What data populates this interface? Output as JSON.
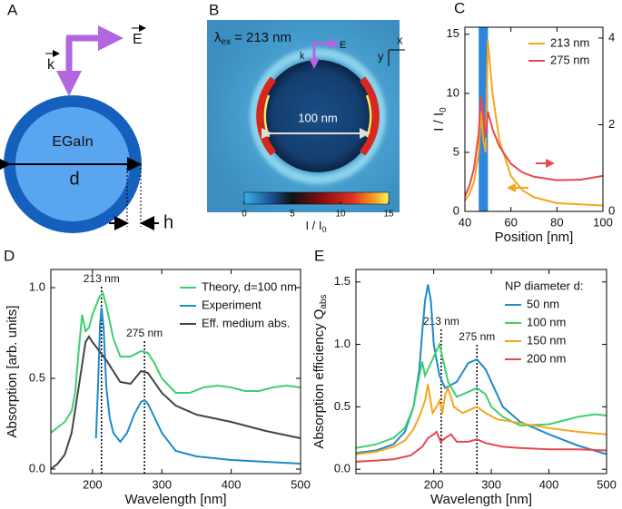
{
  "diagram": {
    "panel_label": "A",
    "wave_vector": "k",
    "field": "E",
    "core": "EGaIn",
    "diameter": "d",
    "shell": "h"
  },
  "field_map": {
    "panel_label": "B",
    "excitation": {
      "symbol": "λ",
      "subscript": "ex",
      "text": "= 213 nm"
    },
    "wave_vector": "k",
    "field": "E",
    "axis_x": "x",
    "axis_y": "y",
    "scale_bar": "100 nm",
    "colorbar": {
      "label": {
        "text": "I / I",
        "subscript": "0"
      },
      "lim": [
        0,
        15
      ],
      "ticks": [
        0,
        5,
        10,
        15
      ]
    }
  },
  "chart_data": [
    {
      "type": "line",
      "panel_label": "C",
      "xlabel": "Position [nm]",
      "ylabel": {
        "text": "I / I",
        "subscript": "0"
      },
      "xlim": [
        40,
        100
      ],
      "xticks": [
        40,
        60,
        80,
        100
      ],
      "ylim": [
        0,
        15.6
      ],
      "yticks": [
        0,
        5,
        10,
        15
      ],
      "y2lim": [
        0,
        4.25
      ],
      "y2ticks": [
        0,
        2,
        4
      ],
      "highlight_x": [
        46,
        50
      ],
      "highlight_color": "#2e86de",
      "series": [
        {
          "name": "213 nm",
          "color": "#f5a61d",
          "x": [
            40,
            42,
            44,
            46,
            47,
            48,
            49,
            50,
            52,
            55,
            60,
            65,
            70,
            80,
            90,
            100
          ],
          "values": [
            0.9,
            1.5,
            2.5,
            5,
            8.5,
            6,
            5,
            14.5,
            10,
            6,
            3,
            1.8,
            1.2,
            0.7,
            0.6,
            0.5
          ]
        },
        {
          "name": "275 nm",
          "color": "#e8474f",
          "axis": "y2",
          "x": [
            40,
            42,
            44,
            46,
            47,
            48,
            49,
            50,
            52,
            55,
            60,
            65,
            70,
            80,
            90,
            100
          ],
          "values": [
            0.35,
            0.6,
            1,
            1.8,
            2.65,
            2.2,
            1.7,
            2.3,
            1.9,
            1.5,
            1.1,
            0.9,
            0.8,
            0.72,
            0.73,
            0.82
          ]
        }
      ]
    },
    {
      "type": "line",
      "panel_label": "D",
      "xlabel": "Wavelength [nm]",
      "ylabel": "Absorption [arb. units]",
      "xlim": [
        140,
        500
      ],
      "xticks": [
        200,
        300,
        400,
        500
      ],
      "ylim": [
        -0.025,
        1.1
      ],
      "yticks": [
        {
          "value": 0,
          "label": "0.0"
        },
        {
          "value": 0.5,
          "label": "0.5"
        },
        {
          "value": 1,
          "label": "1.0"
        }
      ],
      "vlines": [
        {
          "value": 213,
          "label": "213 nm"
        },
        {
          "value": 275,
          "label": "275 nm"
        }
      ],
      "series": [
        {
          "name": "Theory, d=100 nm",
          "color": "#3dcf6e",
          "x": [
            140,
            160,
            170,
            175,
            180,
            185,
            190,
            195,
            200,
            205,
            210,
            215,
            220,
            230,
            240,
            255,
            270,
            280,
            290,
            300,
            320,
            340,
            360,
            380,
            400,
            420,
            440,
            460,
            480,
            500
          ],
          "values": [
            0.2,
            0.26,
            0.32,
            0.42,
            0.65,
            0.85,
            0.76,
            0.78,
            0.85,
            0.9,
            0.95,
            0.97,
            0.9,
            0.72,
            0.62,
            0.62,
            0.65,
            0.64,
            0.58,
            0.5,
            0.42,
            0.42,
            0.45,
            0.46,
            0.45,
            0.43,
            0.43,
            0.45,
            0.46,
            0.45
          ]
        },
        {
          "name": "Experiment",
          "color": "#1f8ac9",
          "x": [
            205,
            208,
            211,
            213,
            216,
            220,
            225,
            230,
            240,
            250,
            260,
            270,
            275,
            280,
            290,
            300,
            320,
            350,
            400,
            450,
            500
          ],
          "values": [
            0.17,
            0.45,
            0.8,
            0.89,
            0.78,
            0.45,
            0.28,
            0.2,
            0.15,
            0.2,
            0.3,
            0.37,
            0.38,
            0.36,
            0.28,
            0.2,
            0.1,
            0.07,
            0.05,
            0.04,
            0.03
          ]
        },
        {
          "name": "Eff. medium abs.",
          "color": "#444444",
          "x": [
            140,
            150,
            160,
            170,
            180,
            190,
            195,
            200,
            210,
            220,
            240,
            255,
            270,
            280,
            300,
            320,
            350,
            400,
            450,
            500
          ],
          "values": [
            0.0,
            0.03,
            0.08,
            0.2,
            0.45,
            0.7,
            0.73,
            0.7,
            0.65,
            0.6,
            0.48,
            0.47,
            0.54,
            0.53,
            0.42,
            0.35,
            0.3,
            0.26,
            0.21,
            0.17
          ]
        }
      ]
    },
    {
      "type": "line",
      "panel_label": "E",
      "xlabel": "Wavelength [nm]",
      "ylabel": {
        "text": "Absorption efficiency Q",
        "subscript": "abs"
      },
      "xlim": [
        65,
        500
      ],
      "xticks": [
        200,
        300,
        400,
        500
      ],
      "ylim": [
        -0.035,
        1.6
      ],
      "yticks": [
        {
          "value": 0,
          "label": "0.0"
        },
        {
          "value": 0.5,
          "label": "0.5"
        },
        {
          "value": 1,
          "label": "1.0"
        },
        {
          "value": 1.5,
          "label": "1.5"
        }
      ],
      "vlines": [
        {
          "value": 213,
          "label": "213 nm"
        },
        {
          "value": 275,
          "label": "275 nm"
        }
      ],
      "legend_title": "NP diameter d:",
      "series": [
        {
          "name": "50 nm",
          "color": "#1f8ac9",
          "x": [
            65,
            100,
            130,
            150,
            165,
            175,
            180,
            185,
            190,
            195,
            200,
            210,
            220,
            240,
            260,
            275,
            290,
            300,
            320,
            350,
            400,
            450,
            500
          ],
          "values": [
            0.13,
            0.15,
            0.2,
            0.3,
            0.5,
            0.8,
            1.1,
            1.35,
            1.48,
            1.35,
            1.0,
            0.75,
            0.65,
            0.7,
            0.85,
            0.88,
            0.8,
            0.7,
            0.5,
            0.38,
            0.28,
            0.19,
            0.12
          ]
        },
        {
          "name": "100 nm",
          "color": "#3dcf6e",
          "x": [
            65,
            100,
            130,
            150,
            165,
            175,
            180,
            185,
            195,
            205,
            210,
            215,
            225,
            240,
            260,
            275,
            290,
            300,
            320,
            350,
            400,
            450,
            480,
            500
          ],
          "values": [
            0.17,
            0.2,
            0.25,
            0.33,
            0.5,
            0.75,
            0.86,
            0.75,
            0.85,
            0.95,
            1.0,
            0.9,
            0.7,
            0.58,
            0.62,
            0.65,
            0.6,
            0.5,
            0.42,
            0.35,
            0.36,
            0.42,
            0.44,
            0.43
          ]
        },
        {
          "name": "150 nm",
          "color": "#f5a61d",
          "x": [
            65,
            100,
            130,
            150,
            165,
            175,
            185,
            190,
            198,
            205,
            210,
            215,
            220,
            225,
            235,
            250,
            265,
            275,
            290,
            310,
            350,
            400,
            450,
            500
          ],
          "values": [
            0.12,
            0.14,
            0.18,
            0.23,
            0.32,
            0.42,
            0.55,
            0.68,
            0.45,
            0.5,
            0.55,
            0.45,
            0.6,
            0.65,
            0.5,
            0.45,
            0.48,
            0.5,
            0.45,
            0.4,
            0.37,
            0.33,
            0.3,
            0.28
          ]
        },
        {
          "name": "200 nm",
          "color": "#e8474f",
          "x": [
            65,
            100,
            130,
            160,
            180,
            190,
            200,
            205,
            212,
            220,
            230,
            240,
            260,
            275,
            290,
            320,
            350,
            400,
            450,
            500
          ],
          "values": [
            0.06,
            0.07,
            0.08,
            0.11,
            0.18,
            0.25,
            0.28,
            0.3,
            0.22,
            0.25,
            0.28,
            0.22,
            0.22,
            0.24,
            0.21,
            0.18,
            0.17,
            0.16,
            0.16,
            0.15
          ]
        }
      ]
    }
  ]
}
